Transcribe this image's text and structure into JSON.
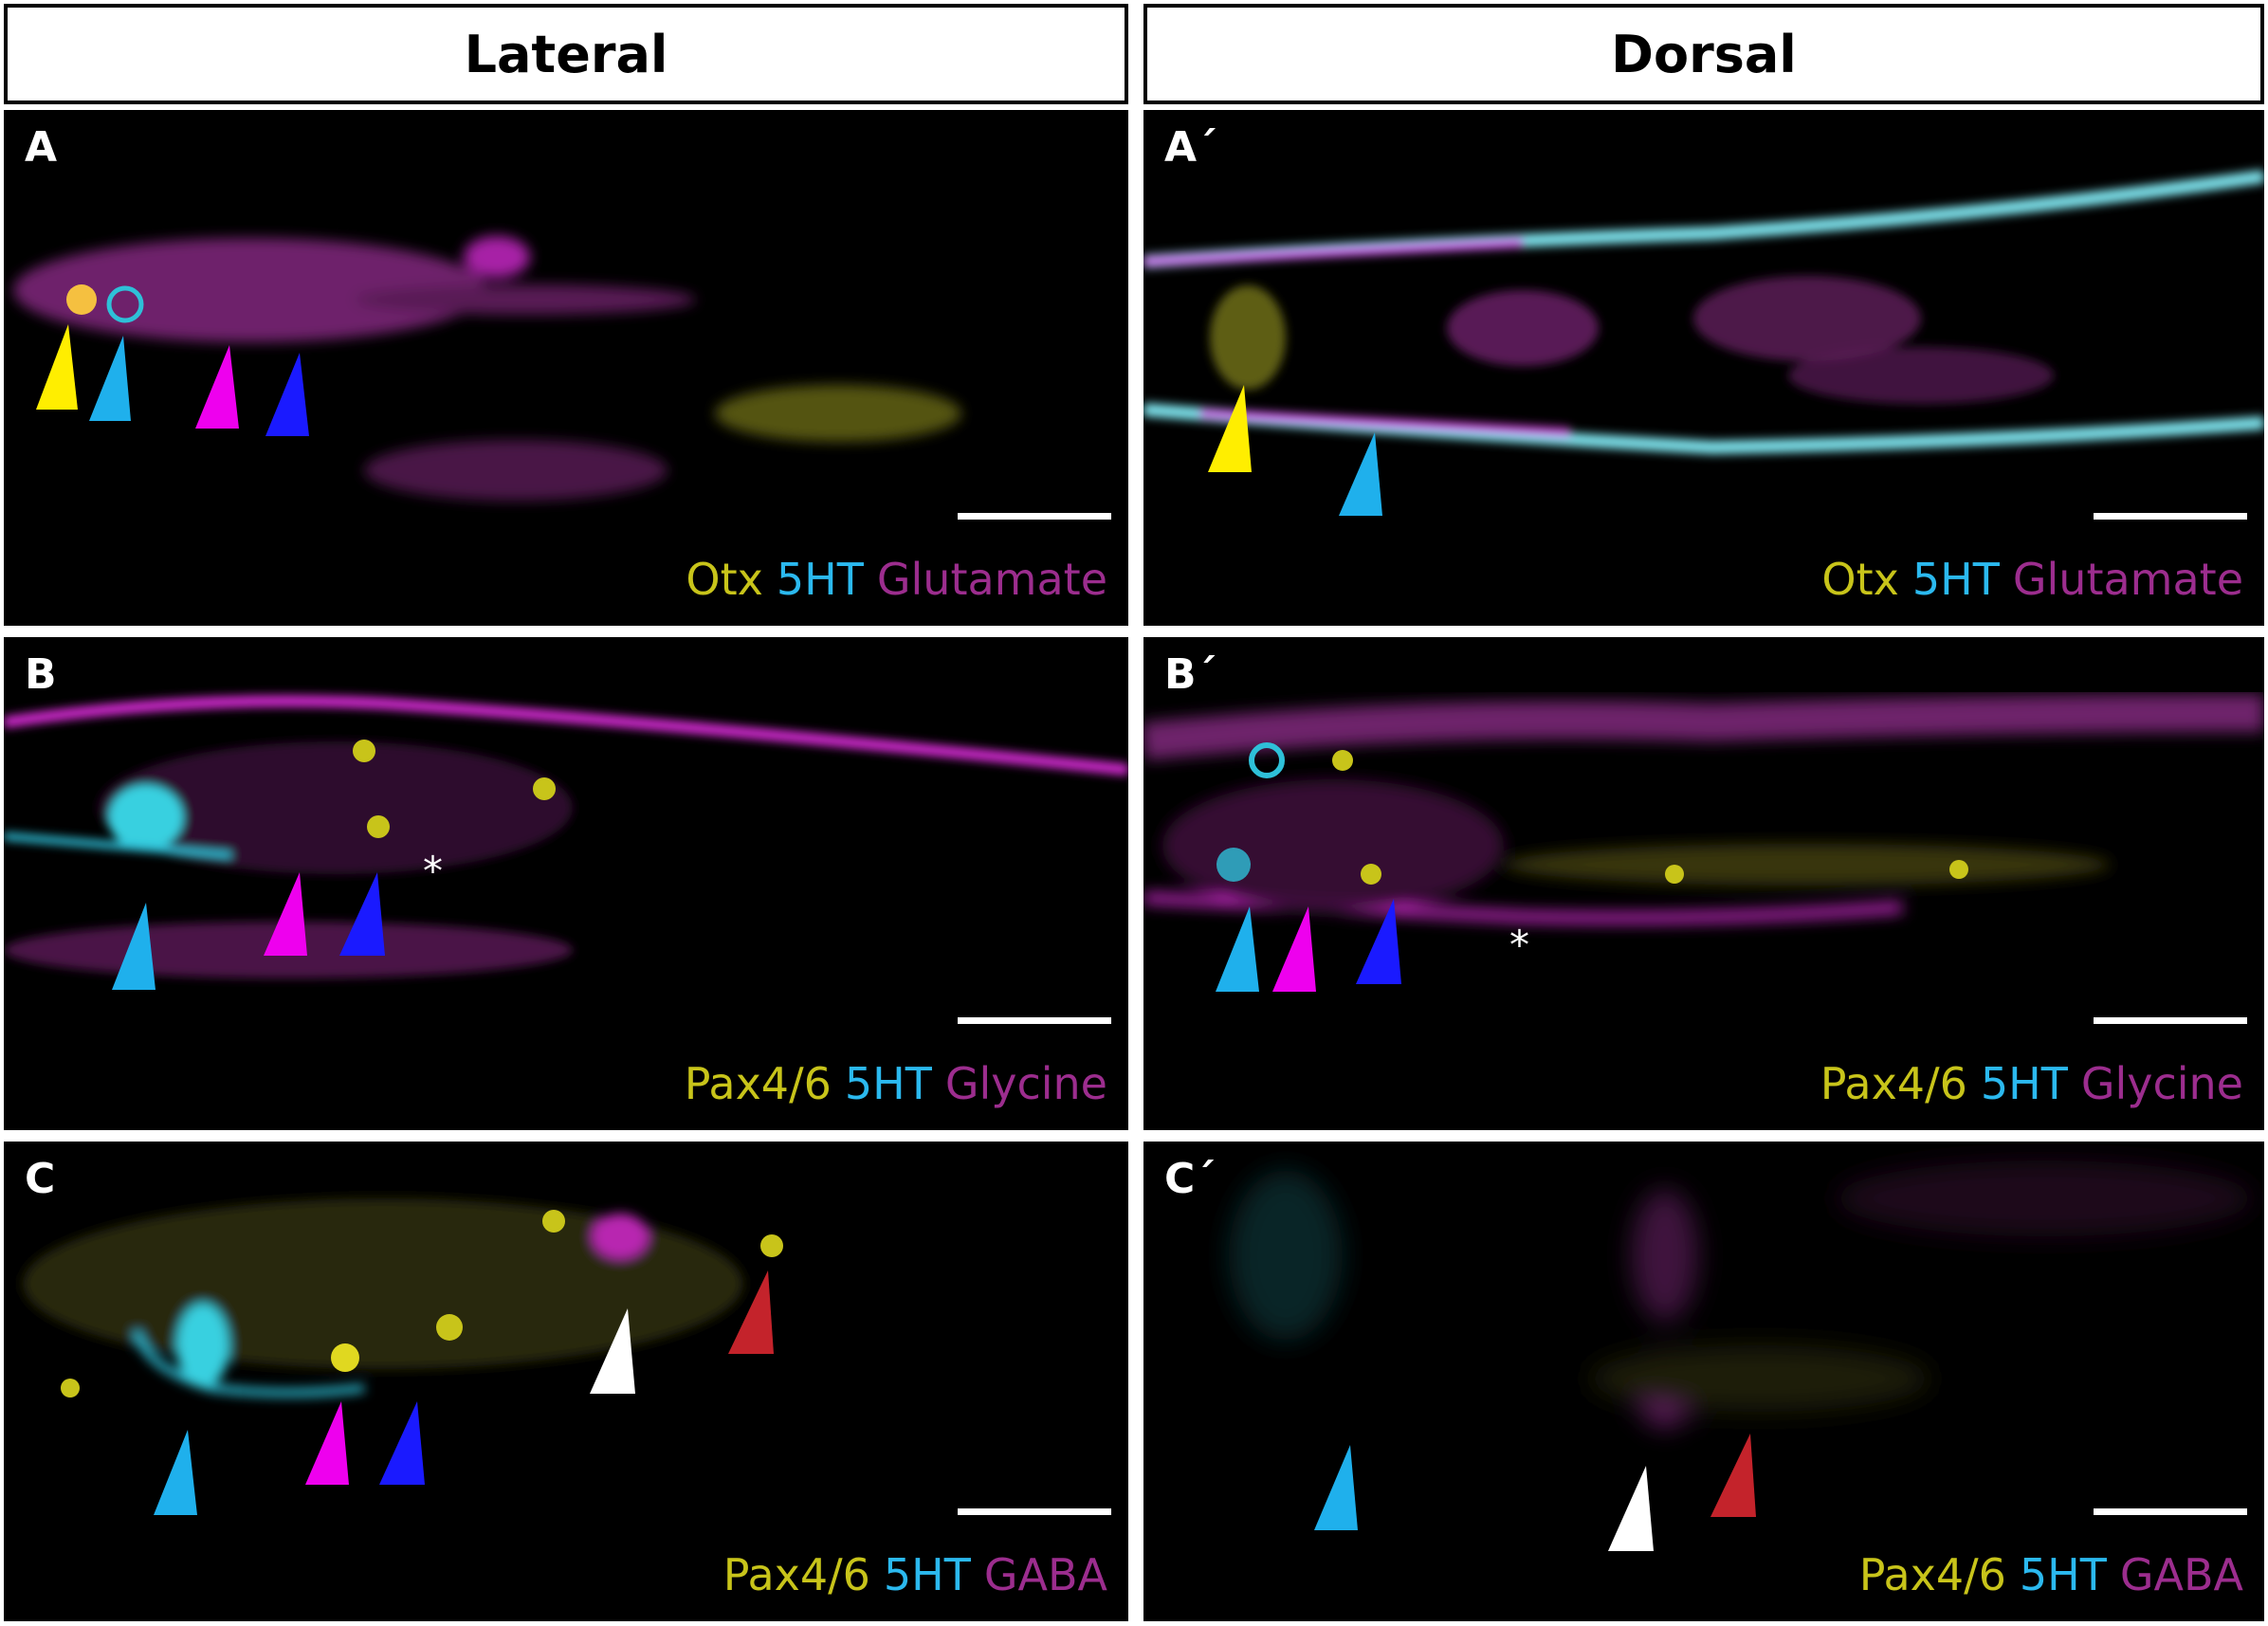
{
  "headers": {
    "left": "Lateral",
    "right": "Dorsal"
  },
  "colors": {
    "yellow_channel": "#c8c41a",
    "cyan_channel": "#2bb9ef",
    "magenta_channel": "#9c2d8e",
    "arrow_yellow": "#ffee00",
    "arrow_cyan": "#1fb0ec",
    "arrow_magenta": "#ee00ee",
    "arrow_blue": "#1a1aff",
    "arrow_white": "#ffffff",
    "arrow_red": "#c4232b"
  },
  "panels": {
    "A": {
      "label": "A",
      "legend": [
        "Otx",
        "5HT",
        "Glutamate"
      ]
    },
    "A2": {
      "label": "A´",
      "legend": [
        "Otx",
        "5HT",
        "Glutamate"
      ]
    },
    "B": {
      "label": "B",
      "legend": [
        "Pax4/6",
        "5HT",
        "Glycine"
      ],
      "asterisk": "*"
    },
    "B2": {
      "label": "B´",
      "legend": [
        "Pax4/6",
        "5HT",
        "Glycine"
      ],
      "asterisk": "*"
    },
    "C": {
      "label": "C",
      "legend": [
        "Pax4/6",
        "5HT",
        "GABA"
      ]
    },
    "C2": {
      "label": "C´",
      "legend": [
        "Pax4/6",
        "5HT",
        "GABA"
      ]
    }
  }
}
